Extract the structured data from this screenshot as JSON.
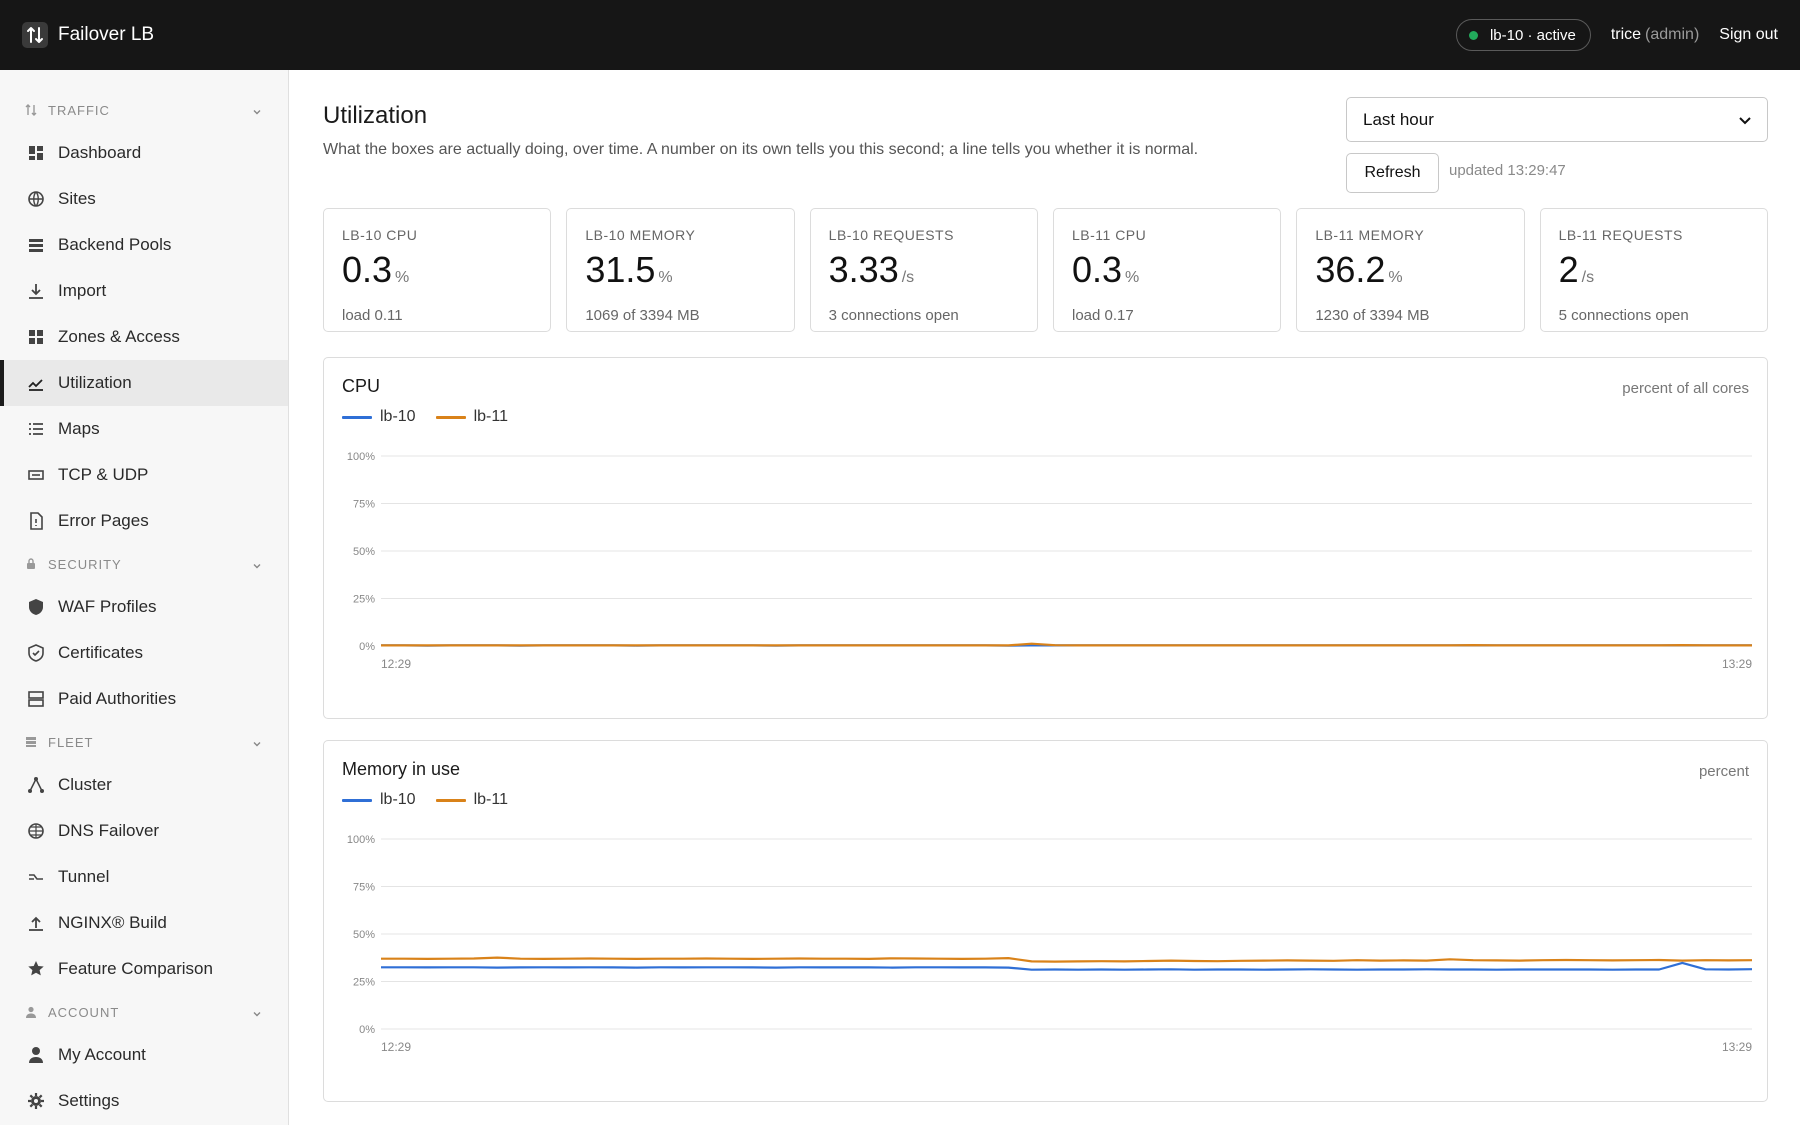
{
  "app": {
    "title": "Failover LB"
  },
  "header": {
    "node_status": "lb-10 · active",
    "user": "trice",
    "role": "(admin)",
    "signout_label": "Sign out"
  },
  "sidebar": {
    "sections": [
      {
        "label": "TRAFFIC",
        "icon": "arrows-updown-icon",
        "items": [
          {
            "label": "Dashboard",
            "icon": "dashboard-icon"
          },
          {
            "label": "Sites",
            "icon": "globe-icon"
          },
          {
            "label": "Backend Pools",
            "icon": "stack-icon"
          },
          {
            "label": "Import",
            "icon": "download-icon"
          },
          {
            "label": "Zones & Access",
            "icon": "grid-icon"
          },
          {
            "label": "Utilization",
            "icon": "chart-line-icon",
            "active": true
          },
          {
            "label": "Maps",
            "icon": "list-icon"
          },
          {
            "label": "TCP & UDP",
            "icon": "port-icon"
          },
          {
            "label": "Error Pages",
            "icon": "file-alert-icon"
          }
        ]
      },
      {
        "label": "SECURITY",
        "icon": "lock-icon",
        "items": [
          {
            "label": "WAF Profiles",
            "icon": "shield-icon"
          },
          {
            "label": "Certificates",
            "icon": "shield-check-icon"
          },
          {
            "label": "Paid Authorities",
            "icon": "server-icon"
          }
        ]
      },
      {
        "label": "FLEET",
        "icon": "fleet-icon",
        "items": [
          {
            "label": "Cluster",
            "icon": "cluster-icon"
          },
          {
            "label": "DNS Failover",
            "icon": "globe-network-icon"
          },
          {
            "label": "Tunnel",
            "icon": "tunnel-icon"
          },
          {
            "label": "NGINX® Build",
            "icon": "upload-icon"
          },
          {
            "label": "Feature Comparison",
            "icon": "star-icon"
          }
        ]
      },
      {
        "label": "ACCOUNT",
        "icon": "person-icon",
        "items": [
          {
            "label": "My Account",
            "icon": "person-icon"
          },
          {
            "label": "Settings",
            "icon": "gear-icon"
          }
        ]
      }
    ]
  },
  "main": {
    "title": "Utilization",
    "subtitle": "What the boxes are actually doing, over time. A number on its own tells you this second; a line tells you whether it is normal.",
    "range": {
      "selected": "Last hour"
    },
    "refresh_label": "Refresh",
    "updated_text": "updated 13:29:47",
    "stats": [
      {
        "label": "LB-10 CPU",
        "value": "0.3",
        "unit": "%",
        "sub": "load 0.11"
      },
      {
        "label": "LB-10 MEMORY",
        "value": "31.5",
        "unit": "%",
        "sub": "1069 of 3394 MB"
      },
      {
        "label": "LB-10 REQUESTS",
        "value": "3.33",
        "unit": "/s",
        "sub": "3 connections open"
      },
      {
        "label": "LB-11 CPU",
        "value": "0.3",
        "unit": "%",
        "sub": "load 0.17"
      },
      {
        "label": "LB-11 MEMORY",
        "value": "36.2",
        "unit": "%",
        "sub": "1230 of 3394 MB"
      },
      {
        "label": "LB-11 REQUESTS",
        "value": "2",
        "unit": "/s",
        "sub": "5 connections open"
      }
    ]
  },
  "colors": {
    "lb10": "#2f6fd6",
    "lb11": "#d98219",
    "grid": "#e4e4e4",
    "tick": "#888888"
  },
  "chart_data": [
    {
      "type": "line",
      "title": "CPU",
      "unit_label": "percent of all cores",
      "ylim": [
        0,
        100
      ],
      "yticks": [
        "100%",
        "75%",
        "50%",
        "25%",
        "0%"
      ],
      "x_ticks": [
        "12:29",
        "13:29"
      ],
      "grid": true,
      "legend": "top-left",
      "series": [
        {
          "name": "lb-10",
          "values": [
            0.3,
            0.3,
            0.2,
            0.3,
            0.3,
            0.3,
            0.2,
            0.3,
            0.3,
            0.3,
            0.3,
            0.2,
            0.3,
            0.3,
            0.3,
            0.3,
            0.3,
            0.2,
            0.3,
            0.3,
            0.3,
            0.3,
            0.3,
            0.3,
            0.3,
            0.3,
            0.3,
            0.2,
            0.3,
            0.3,
            0.3,
            0.3,
            0.3,
            0.3,
            0.3,
            0.3,
            0.3,
            0.3,
            0.3,
            0.3,
            0.3,
            0.3,
            0.3,
            0.3,
            0.3,
            0.3,
            0.3,
            0.3,
            0.3,
            0.3,
            0.3,
            0.3,
            0.3,
            0.3,
            0.3,
            0.3,
            0.3,
            0.3,
            0.3,
            0.3
          ]
        },
        {
          "name": "lb-11",
          "values": [
            0.3,
            0.3,
            0.3,
            0.3,
            0.3,
            0.3,
            0.3,
            0.3,
            0.3,
            0.3,
            0.3,
            0.3,
            0.3,
            0.3,
            0.3,
            0.3,
            0.3,
            0.3,
            0.3,
            0.3,
            0.3,
            0.3,
            0.3,
            0.3,
            0.3,
            0.3,
            0.3,
            0.3,
            1.2,
            0.4,
            0.3,
            0.3,
            0.3,
            0.3,
            0.3,
            0.3,
            0.3,
            0.3,
            0.3,
            0.3,
            0.3,
            0.3,
            0.3,
            0.3,
            0.3,
            0.3,
            0.3,
            0.5,
            0.3,
            0.3,
            0.3,
            0.3,
            0.3,
            0.3,
            0.3,
            0.3,
            0.5,
            0.3,
            0.3,
            0.3
          ]
        }
      ]
    },
    {
      "type": "line",
      "title": "Memory in use",
      "unit_label": "percent",
      "ylim": [
        0,
        100
      ],
      "yticks": [
        "100%",
        "75%",
        "50%",
        "25%",
        "0%"
      ],
      "x_ticks": [
        "12:29",
        "13:29"
      ],
      "grid": true,
      "legend": "top-left",
      "series": [
        {
          "name": "lb-10",
          "values": [
            32.5,
            32.5,
            32.4,
            32.5,
            32.5,
            32.3,
            32.4,
            32.5,
            32.4,
            32.5,
            32.4,
            32.3,
            32.5,
            32.4,
            32.5,
            32.5,
            32.4,
            32.3,
            32.5,
            32.4,
            32.4,
            32.4,
            32.3,
            32.5,
            32.5,
            32.4,
            32.4,
            32.3,
            31.2,
            31.3,
            31.2,
            31.3,
            31.2,
            31.3,
            31.4,
            31.2,
            31.3,
            31.3,
            31.2,
            31.3,
            31.4,
            31.3,
            31.2,
            31.3,
            31.3,
            31.4,
            31.3,
            31.3,
            31.2,
            31.3,
            31.3,
            31.3,
            31.3,
            31.2,
            31.3,
            31.3,
            34.8,
            31.4,
            31.3,
            31.5
          ]
        },
        {
          "name": "lb-11",
          "values": [
            37.0,
            37.0,
            36.9,
            37.0,
            37.1,
            37.6,
            37.0,
            36.9,
            37.0,
            37.1,
            37.0,
            36.9,
            37.0,
            37.0,
            37.1,
            37.0,
            36.9,
            37.0,
            37.1,
            37.0,
            37.0,
            36.9,
            37.2,
            37.1,
            37.0,
            36.9,
            37.0,
            37.3,
            35.6,
            35.5,
            35.6,
            35.7,
            35.6,
            35.8,
            36.0,
            35.8,
            35.7,
            35.9,
            36.0,
            36.1,
            36.0,
            35.9,
            36.2,
            36.0,
            36.1,
            36.0,
            36.7,
            36.2,
            36.1,
            36.0,
            36.2,
            36.3,
            36.2,
            36.1,
            36.2,
            36.3,
            36.0,
            36.2,
            36.1,
            36.2
          ]
        }
      ]
    }
  ]
}
